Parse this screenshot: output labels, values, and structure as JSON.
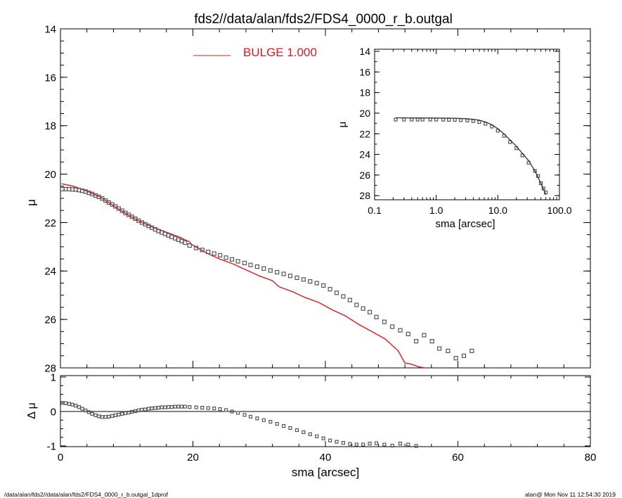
{
  "title": "fds2//data/alan/fds2/FDS4_0000_r_b.outgal",
  "footer": {
    "left": "/data/alan/fds2//data/alan/fds2/FDS4_0000_r_b.outgal_1dprof",
    "right": "alan@  Mon Nov 11 12:54:30 2019"
  },
  "colors": {
    "model": "#e8141c",
    "data": "#555555",
    "axes": "#000000"
  },
  "chart_data": [
    {
      "id": "main",
      "type": "scatter",
      "ylabel": "μ",
      "xlim": [
        0,
        80
      ],
      "ylim": [
        28,
        14
      ],
      "y_inverted": true,
      "xticks": [
        0,
        20,
        40,
        60,
        80
      ],
      "yticks": [
        14,
        16,
        18,
        20,
        22,
        24,
        26,
        28
      ],
      "legend": {
        "label": "BULGE  1.000",
        "position": "top-center"
      },
      "series": [
        {
          "name": "BULGE  1.000",
          "style": "line",
          "color": "#e8141c",
          "x": [
            0.2,
            2,
            4,
            6,
            8,
            10,
            12,
            14,
            16,
            18,
            19.5,
            19.8,
            22,
            24,
            26,
            28,
            30,
            32,
            33,
            35,
            37,
            39,
            41,
            43,
            45,
            47,
            49,
            51,
            52,
            53,
            54,
            55
          ],
          "y": [
            20.4,
            20.5,
            20.7,
            20.95,
            21.3,
            21.65,
            21.95,
            22.2,
            22.4,
            22.6,
            22.8,
            22.9,
            23.25,
            23.5,
            23.7,
            23.95,
            24.2,
            24.4,
            24.65,
            24.85,
            25.1,
            25.3,
            25.6,
            25.85,
            26.2,
            26.5,
            26.8,
            27.3,
            27.8,
            27.85,
            27.95,
            28.0
          ]
        },
        {
          "name": "",
          "style": "markers",
          "color": "#555555",
          "x": [
            0.3,
            0.8,
            1.3,
            1.8,
            2.3,
            2.8,
            3.3,
            3.8,
            4.3,
            4.8,
            5.3,
            5.8,
            6.3,
            6.8,
            7.3,
            7.8,
            8.3,
            8.8,
            9.3,
            9.8,
            10.3,
            10.8,
            11.3,
            11.8,
            12.3,
            12.8,
            13.3,
            13.8,
            14.3,
            14.8,
            15.3,
            15.8,
            16.3,
            16.8,
            17.3,
            17.8,
            18.3,
            18.8,
            19.5,
            20.5,
            21.4,
            22.3,
            23.2,
            24.1,
            25.0,
            25.9,
            26.8,
            27.8,
            28.7,
            29.7,
            30.7,
            31.7,
            32.7,
            33.7,
            34.7,
            35.7,
            36.7,
            37.7,
            38.7,
            39.7,
            40.7,
            41.7,
            42.7,
            43.7,
            44.7,
            45.7,
            46.7,
            47.7,
            48.9,
            50.1,
            51.3,
            52.5,
            53.7,
            54.9,
            56.1,
            57.2,
            58.5,
            59.7,
            60.9,
            62.1
          ],
          "y": [
            20.62,
            20.62,
            20.62,
            20.63,
            20.64,
            20.66,
            20.69,
            20.72,
            20.77,
            20.82,
            20.88,
            20.94,
            21.01,
            21.09,
            21.17,
            21.25,
            21.33,
            21.42,
            21.51,
            21.6,
            21.68,
            21.76,
            21.84,
            21.92,
            22.0,
            22.07,
            22.14,
            22.21,
            22.28,
            22.35,
            22.41,
            22.47,
            22.53,
            22.59,
            22.65,
            22.71,
            22.77,
            22.83,
            22.95,
            23.05,
            23.13,
            23.21,
            23.28,
            23.35,
            23.45,
            23.52,
            23.6,
            23.67,
            23.75,
            23.82,
            23.9,
            23.98,
            24.05,
            24.12,
            24.2,
            24.28,
            24.35,
            24.43,
            24.5,
            24.6,
            24.75,
            24.9,
            25.05,
            25.2,
            25.4,
            25.55,
            25.7,
            25.9,
            26.1,
            26.3,
            26.45,
            26.6,
            26.9,
            26.65,
            26.9,
            27.2,
            27.3,
            27.6,
            27.5,
            27.3
          ]
        }
      ]
    },
    {
      "id": "residual",
      "type": "scatter",
      "ylabel": "Δ μ",
      "xlabel": "sma [arcsec]",
      "xlim": [
        0,
        80
      ],
      "ylim": [
        -1,
        1
      ],
      "xticks": [
        0,
        20,
        40,
        60,
        80
      ],
      "yticks": [
        -1,
        0,
        1
      ],
      "zero_line": true,
      "series": [
        {
          "name": "",
          "style": "markers",
          "color": "#555555",
          "x": [
            0.3,
            0.8,
            1.3,
            1.8,
            2.3,
            2.8,
            3.3,
            3.8,
            4.3,
            4.8,
            5.3,
            5.8,
            6.3,
            6.8,
            7.3,
            7.8,
            8.3,
            8.8,
            9.3,
            9.8,
            10.3,
            10.8,
            11.3,
            11.8,
            12.3,
            12.8,
            13.3,
            13.8,
            14.3,
            14.8,
            15.3,
            15.8,
            16.3,
            16.8,
            17.3,
            17.8,
            18.3,
            18.8,
            19.5,
            20.5,
            21.4,
            22.3,
            23.2,
            24.1,
            25.0,
            25.9,
            26.8,
            27.8,
            28.7,
            29.7,
            30.7,
            31.7,
            32.7,
            33.7,
            34.7,
            35.7,
            36.7,
            37.7,
            38.7,
            39.7,
            40.7,
            41.7,
            42.7,
            43.7,
            44.7,
            45.7,
            46.7,
            47.7,
            48.9,
            50.1,
            51.3,
            52.5,
            53.7
          ],
          "y": [
            0.25,
            0.24,
            0.22,
            0.2,
            0.17,
            0.13,
            0.08,
            0.03,
            -0.02,
            -0.07,
            -0.11,
            -0.14,
            -0.16,
            -0.16,
            -0.15,
            -0.13,
            -0.11,
            -0.09,
            -0.07,
            -0.05,
            -0.03,
            -0.01,
            0.01,
            0.03,
            0.05,
            0.06,
            0.08,
            0.09,
            0.1,
            0.11,
            0.12,
            0.12,
            0.13,
            0.13,
            0.14,
            0.14,
            0.14,
            0.14,
            0.13,
            0.12,
            0.11,
            0.1,
            0.09,
            0.07,
            0.04,
            0.0,
            -0.04,
            -0.1,
            -0.15,
            -0.2,
            -0.25,
            -0.3,
            -0.36,
            -0.42,
            -0.48,
            -0.54,
            -0.6,
            -0.66,
            -0.72,
            -0.78,
            -0.84,
            -0.88,
            -0.91,
            -0.94,
            -0.96,
            -0.96,
            -0.93,
            -0.92,
            -0.96,
            -0.99,
            -0.93,
            -0.96,
            -1.0
          ]
        }
      ]
    },
    {
      "id": "inset",
      "type": "scatter",
      "ylabel": "μ",
      "xlabel": "sma [arcsec]",
      "xscale": "log",
      "xlim": [
        0.1,
        100
      ],
      "ylim": [
        28.4,
        14
      ],
      "y_inverted": true,
      "xticks": [
        0.1,
        1,
        10,
        100
      ],
      "xticklabels": [
        "0.1",
        "1.0",
        "10.0",
        "100.0"
      ],
      "yticks": [
        14,
        16,
        18,
        20,
        22,
        24,
        26,
        28
      ],
      "series": [
        {
          "name": "",
          "style": "markers",
          "color": "#555555",
          "x": [
            0.22,
            0.3,
            0.4,
            0.5,
            0.6,
            0.8,
            1.0,
            1.3,
            1.6,
            2.0,
            2.5,
            3.2,
            4.0,
            5.0,
            6.3,
            8,
            10,
            12.6,
            15.8,
            20,
            25,
            31.6,
            40,
            45,
            50,
            55,
            60
          ],
          "y": [
            20.62,
            20.62,
            20.62,
            20.62,
            20.62,
            20.62,
            20.62,
            20.63,
            20.64,
            20.65,
            20.67,
            20.7,
            20.76,
            20.86,
            21.03,
            21.3,
            21.7,
            22.2,
            22.8,
            23.4,
            24.1,
            24.8,
            25.6,
            26.1,
            26.8,
            27.3,
            27.7
          ]
        },
        {
          "name": "",
          "style": "lines",
          "color": "#333333",
          "x": [
            0.22,
            0.5,
            1.0,
            2.0,
            3.0,
            4.0,
            5.0,
            6.3,
            8,
            10,
            12.6,
            15.8,
            20,
            25,
            31.6,
            40,
            50,
            60
          ],
          "y": [
            20.45,
            20.46,
            20.47,
            20.49,
            20.53,
            20.59,
            20.68,
            20.85,
            21.12,
            21.5,
            22.0,
            22.6,
            23.2,
            23.9,
            24.6,
            25.6,
            26.8,
            27.9
          ]
        }
      ]
    }
  ]
}
